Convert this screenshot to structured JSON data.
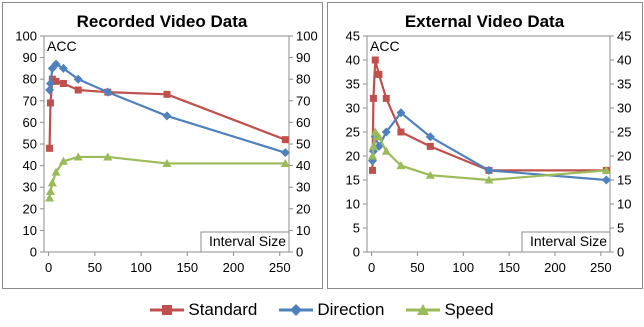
{
  "series_styles": {
    "Standard": {
      "color": "#C0504D",
      "marker": "square"
    },
    "Direction": {
      "color": "#4F81BD",
      "marker": "diamond"
    },
    "Speed": {
      "color": "#9BBB59",
      "marker": "triangle"
    }
  },
  "legend": [
    "Standard",
    "Direction",
    "Speed"
  ],
  "chart_data": [
    {
      "type": "line",
      "title": "Recorded Video Data",
      "ylabel": "ACC",
      "xlabel": "Interval Size",
      "xlim": [
        -5,
        260
      ],
      "ylim": [
        0,
        100
      ],
      "xticks": [
        0,
        50,
        100,
        150,
        200,
        250
      ],
      "yticks": [
        0,
        10,
        20,
        30,
        40,
        50,
        60,
        70,
        80,
        90,
        100
      ],
      "secondary_yaxis": true,
      "series": [
        {
          "name": "Standard",
          "x": [
            1,
            2,
            4,
            8,
            16,
            32,
            64,
            128,
            256
          ],
          "y": [
            48,
            69,
            80,
            79,
            78,
            75,
            74,
            73,
            52
          ]
        },
        {
          "name": "Direction",
          "x": [
            1,
            2,
            4,
            8,
            16,
            32,
            64,
            128,
            256
          ],
          "y": [
            75,
            78,
            85,
            87,
            85,
            80,
            74,
            63,
            46
          ]
        },
        {
          "name": "Speed",
          "x": [
            1,
            2,
            4,
            8,
            16,
            32,
            64,
            128,
            256
          ],
          "y": [
            25,
            28,
            32,
            37,
            42,
            44,
            44,
            41,
            41
          ]
        }
      ]
    },
    {
      "type": "line",
      "title": "External Video Data",
      "ylabel": "ACC",
      "xlabel": "Interval Size",
      "xlim": [
        -5,
        260
      ],
      "ylim": [
        0,
        45
      ],
      "xticks": [
        0,
        50,
        100,
        150,
        200,
        250
      ],
      "yticks": [
        0,
        5,
        10,
        15,
        20,
        25,
        30,
        35,
        40,
        45
      ],
      "secondary_yaxis": true,
      "series": [
        {
          "name": "Standard",
          "x": [
            1,
            2,
            4,
            8,
            16,
            32,
            64,
            128,
            256
          ],
          "y": [
            17,
            32,
            40,
            37,
            32,
            25,
            22,
            17,
            17
          ]
        },
        {
          "name": "Direction",
          "x": [
            1,
            2,
            4,
            8,
            16,
            32,
            64,
            128,
            256
          ],
          "y": [
            19,
            21,
            24,
            22,
            25,
            29,
            24,
            17,
            15
          ]
        },
        {
          "name": "Speed",
          "x": [
            1,
            2,
            4,
            8,
            16,
            32,
            64,
            128,
            256
          ],
          "y": [
            20,
            22,
            25,
            24,
            21,
            18,
            16,
            15,
            17
          ]
        }
      ]
    }
  ]
}
